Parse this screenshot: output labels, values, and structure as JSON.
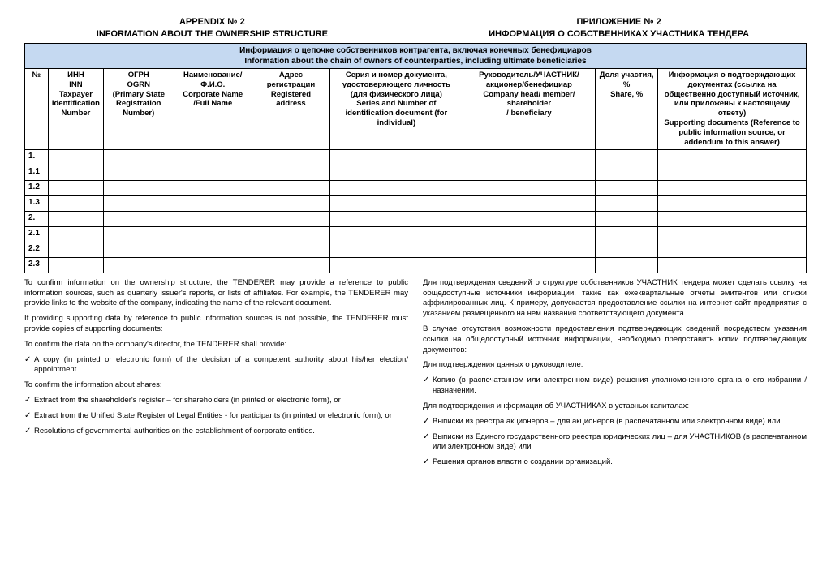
{
  "titles": {
    "left_line1": "APPENDIX № 2",
    "left_line2": "INFORMATION ABOUT THE OWNERSHIP STRUCTURE",
    "right_line1": "ПРИЛОЖЕНИЕ № 2",
    "right_line2": "ИНФОРМАЦИЯ О СОБСТВЕННИКАХ УЧАСТНИКА ТЕНДЕРА"
  },
  "banner": {
    "ru": "Информация о цепочке собственников контрагента, включая конечных бенефициаров",
    "en": "Information about the chain of owners of counterparties, including ultimate beneficiaries"
  },
  "columns": {
    "c1": "№",
    "c2": "ИНН\nINN\nTaxpayer Identification Number",
    "c3": "ОГРН\nOGRN\n(Primary State Registration Number)",
    "c4": "Наименование/Ф.И.О.\nCorporate Name\n/Full Name",
    "c5": "Адрес регистрации\nRegistered address",
    "c6": "Серия и номер документа, удостоверяющего личность (для физического лица)\nSeries and Number of identification document (for individual)",
    "c7": "Руководитель/УЧАСТНИК/акционер/бенефициар\nCompany head/ member/ shareholder\n/ beneficiary",
    "c8": "Доля участия, %\nShare, %",
    "c9": "Информация о подтверждающих документах (ссылка на общественно доступный источник, или приложены к настоящему ответу)\nSupporting documents (Reference to public information source, or addendum to this answer)"
  },
  "row_numbers": [
    "1.",
    "1.1",
    "1.2",
    "1.3",
    "2.",
    "2.1",
    "2.2",
    "2.3"
  ],
  "notes_en": {
    "p1": "To confirm information on the ownership structure, the TENDERER may provide a reference to public information sources, such as quarterly issuer's reports, or lists of affiliates. For example, the TENDERER may provide links to the website of the company, indicating the name of the relevant document.",
    "p2": "If providing supporting data by reference to public information sources is not possible, the TENDERER must provide copies of supporting documents:",
    "p3": "To confirm the data on the company's director, the TENDERER shall provide:",
    "b1": "A copy (in printed or electronic form) of the decision of a competent authority about his/her election/ appointment.",
    "p4": "To confirm the information about shares:",
    "b2": "Extract from the shareholder's register – for shareholders (in printed or electronic form), or",
    "b3": "Extract from the Unified State Register of Legal Entities - for participants (in printed or electronic form), or",
    "b4": "Resolutions of governmental authorities on the establishment of corporate entities."
  },
  "notes_ru": {
    "p1": "Для подтверждения сведений о структуре собственников УЧАСТНИК тендера может сделать ссылку на общедоступные источники информации, такие как ежеквартальные отчеты эмитентов или списки аффилированных лиц.  К примеру, допускается предоставление ссылки на интернет-сайт предприятия с указанием размещенного на нем названия соответствующего документа.",
    "p2": "В случае отсутствия возможности предоставления подтверждающих сведений посредством указания ссылки на общедоступный источник информации, необходимо предоставить копии подтверждающих документов:",
    "p3": "Для подтверждения данных о руководителе:",
    "b1": "Копию (в распечатанном или электронном виде) решения уполномоченного органа о его избрании / назначении.",
    "p4": "Для подтверждения информации об УЧАСТНИКАХ в уставных капиталах:",
    "b2": "Выписки из реестра акционеров – для акционеров (в распечатанном или электронном виде) или",
    "b3": "Выписки из Единого государственного реестра юридических лиц – для УЧАСТНИКОВ (в распечатанном или электронном виде) или",
    "b4": "Решения органов власти о создании организаций."
  },
  "col_widths": [
    "3%",
    "7%",
    "9%",
    "10%",
    "10%",
    "17%",
    "17%",
    "8%",
    "19%"
  ]
}
